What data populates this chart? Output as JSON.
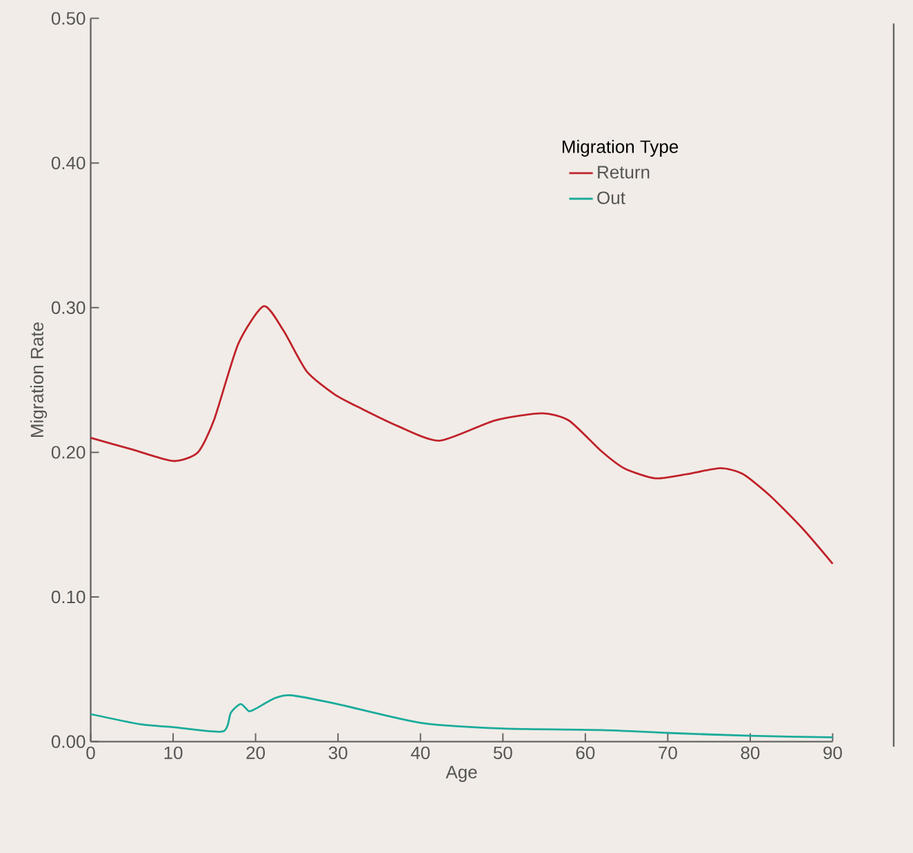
{
  "chart_data": {
    "type": "line",
    "xlabel": "Age",
    "ylabel": "Migration Rate",
    "legend_title": "Migration Type",
    "legend": "top right",
    "grid": false,
    "marker": "none",
    "line_style": "solid",
    "xlim": [
      0,
      90
    ],
    "ylim": [
      0,
      0.5
    ],
    "xticks": [
      0,
      10,
      20,
      30,
      40,
      50,
      60,
      70,
      80,
      90
    ],
    "yticks": [
      {
        "value": 0,
        "label": "0.00"
      },
      {
        "value": 0.1,
        "label": "0.10"
      },
      {
        "value": 0.2,
        "label": "0.20"
      },
      {
        "value": 0.3,
        "label": "0.30"
      },
      {
        "value": 0.4,
        "label": "0.40"
      },
      {
        "value": 0.5,
        "label": "0.50"
      }
    ],
    "series": [
      {
        "name": "Return",
        "color": "#c0222a",
        "x": [
          0,
          5,
          10,
          13,
          15,
          17.9,
          21,
          23.4,
          26.2,
          29.6,
          32.9,
          37.3,
          42.3,
          49,
          54.7,
          58,
          61.9,
          64.7,
          68.5,
          72.4,
          76.4,
          79.1,
          82.4,
          86.4,
          90
        ],
        "values": [
          0.21,
          0.202,
          0.194,
          0.2,
          0.223,
          0.275,
          0.301,
          0.284,
          0.256,
          0.24,
          0.23,
          0.218,
          0.208,
          0.222,
          0.227,
          0.222,
          0.201,
          0.189,
          0.182,
          0.185,
          0.189,
          0.185,
          0.17,
          0.147,
          0.123
        ]
      },
      {
        "name": "Out",
        "color": "#1aab9b",
        "x": [
          0,
          6,
          10,
          16,
          17,
          18.2,
          19.2,
          20.1,
          22.3,
          24.3,
          29.9,
          40,
          50,
          62,
          70,
          80,
          90
        ],
        "values": [
          0.019,
          0.012,
          0.01,
          0.007,
          0.02,
          0.026,
          0.021,
          0.023,
          0.03,
          0.032,
          0.026,
          0.013,
          0.009,
          0.008,
          0.006,
          0.004,
          0.003
        ]
      }
    ]
  }
}
